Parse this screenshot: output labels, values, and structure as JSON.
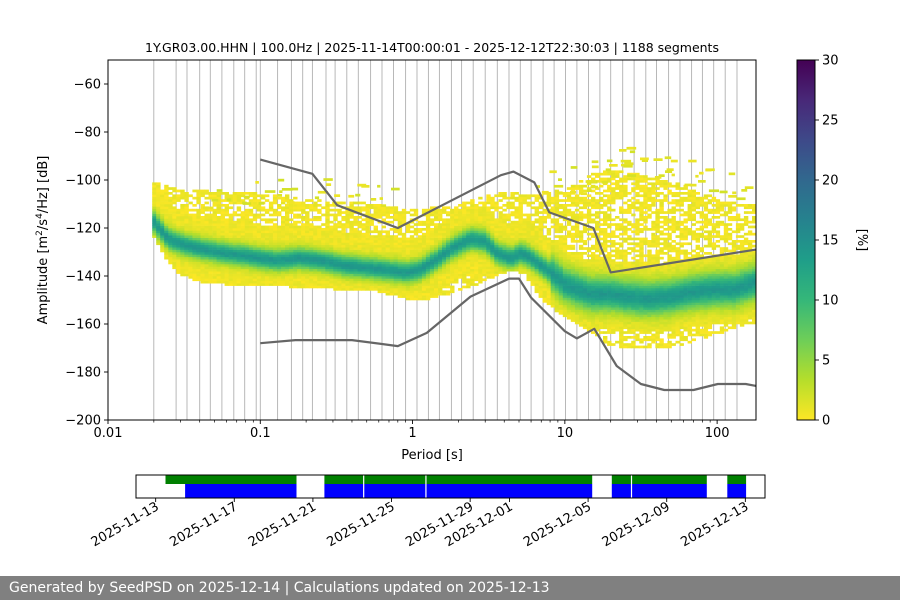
{
  "chart_data": [
    {
      "type": "heatmap",
      "title": "1Y.GR03.00.HHN | 100.0Hz | 2025-11-14T00:00:01 - 2025-12-12T22:30:03 | 1188 segments",
      "xlabel": "Period [s]",
      "ylabel_parts": [
        "Amplitude [m",
        "2",
        "/s",
        "4",
        "/Hz] [dB]"
      ],
      "x_scale": "log",
      "xlim": [
        0.01,
        180
      ],
      "ylim": [
        -200,
        -50
      ],
      "x_ticks": [
        0.01,
        0.1,
        1,
        10,
        100
      ],
      "x_tick_labels": [
        "0.01",
        "0.1",
        "1",
        "10",
        "100"
      ],
      "y_ticks": [
        -200,
        -180,
        -160,
        -140,
        -120,
        -100,
        -80,
        -60
      ],
      "y_tick_labels": [
        "−200",
        "−180",
        "−160",
        "−140",
        "−120",
        "−100",
        "−80",
        "−60"
      ],
      "grid": "vertical lines at PSD period bins",
      "grid_periods": [
        0.02,
        0.028,
        0.033,
        0.04,
        0.047,
        0.056,
        0.067,
        0.079,
        0.094,
        0.1,
        0.13,
        0.16,
        0.19,
        0.22,
        0.27,
        0.31,
        0.37,
        0.44,
        0.53,
        0.63,
        0.75,
        0.9,
        1.07,
        1.27,
        1.5,
        1.8,
        2.1,
        2.5,
        3.0,
        3.6,
        4.3,
        5.1,
        6.0,
        7.2,
        8.5,
        10.1,
        12,
        14.3,
        17,
        20,
        24,
        28.5,
        34,
        40,
        48,
        57,
        68,
        80,
        95,
        113,
        135
      ],
      "colorbar": {
        "label": "[%]",
        "range": [
          0,
          30
        ],
        "ticks": [
          0,
          5,
          10,
          15,
          20,
          25,
          30
        ],
        "tick_labels": [
          "0",
          "5",
          "10",
          "15",
          "20",
          "25",
          "30"
        ],
        "colors": [
          "#fde725",
          "#b5de2b",
          "#6ece58",
          "#35b779",
          "#1f9e89",
          "#26828e",
          "#31688e",
          "#3e4989",
          "#482878",
          "#440154"
        ]
      },
      "noise_models": {
        "color": "#666666",
        "high": {
          "x": [
            0.1,
            0.22,
            0.32,
            0.8,
            3.8,
            4.6,
            6.3,
            7.9,
            15.4,
            20,
            180
          ],
          "y": [
            -91.5,
            -97.4,
            -110.5,
            -120,
            -98,
            -96.5,
            -101,
            -113.5,
            -120,
            -138.5,
            -129
          ]
        },
        "low": {
          "x": [
            0.1,
            0.17,
            0.4,
            0.8,
            1.24,
            2.4,
            4.3,
            5.0,
            6.0,
            10,
            12,
            15.6,
            21.9,
            31.6,
            45,
            70,
            101,
            154,
            180
          ],
          "y": [
            -168,
            -166.7,
            -166.7,
            -169.2,
            -163.7,
            -148.6,
            -141.1,
            -141.1,
            -149,
            -163,
            -166,
            -162,
            -177.5,
            -185,
            -187.5,
            -187.5,
            -185,
            -185,
            -185.8
          ]
        }
      },
      "density": {
        "mode_x": [
          0.02,
          0.025,
          0.03,
          0.04,
          0.06,
          0.08,
          0.1,
          0.13,
          0.18,
          0.25,
          0.35,
          0.5,
          0.7,
          0.9,
          1.1,
          1.4,
          1.8,
          2.4,
          3.0,
          3.6,
          4.4,
          5.2,
          6.0,
          7.0,
          8.5,
          10,
          12,
          15,
          20,
          25,
          35,
          50,
          70,
          100,
          130,
          180
        ],
        "mode_y": [
          -118,
          -125,
          -127,
          -129,
          -131,
          -132,
          -133,
          -134,
          -133,
          -134,
          -136,
          -137,
          -138,
          -139,
          -138,
          -134,
          -129,
          -125,
          -126,
          -131,
          -133,
          -131,
          -133,
          -136,
          -140,
          -144,
          -146,
          -148,
          -148,
          -149,
          -150,
          -149,
          -147,
          -146,
          -146,
          -143
        ],
        "outline_x": [
          0.0195,
          0.025,
          0.03,
          0.04,
          0.06,
          0.08,
          0.1,
          0.15,
          0.2,
          0.3,
          0.5,
          0.8,
          1.0,
          1.3,
          1.8,
          2.5,
          3.6,
          4.5,
          5.5,
          7,
          10,
          15,
          20,
          30,
          50,
          70,
          100,
          130,
          180
        ],
        "outline_top": [
          -101,
          -103,
          -104,
          -105,
          -105,
          -106,
          -106,
          -107,
          -108,
          -109,
          -110,
          -112,
          -113,
          -112,
          -112,
          -108,
          -106,
          -105,
          -107,
          -106,
          -104,
          -98,
          -96,
          -98,
          -101,
          -104,
          -108,
          -110,
          -111
        ],
        "outline_bottom": [
          -123,
          -135,
          -140,
          -143,
          -144,
          -144,
          -144,
          -145,
          -145,
          -146,
          -146,
          -149,
          -151,
          -150,
          -148,
          -145,
          -140,
          -138,
          -140,
          -150,
          -158,
          -164,
          -170,
          -171,
          -170,
          -168,
          -165,
          -162,
          -160
        ],
        "upper_speckle_x": [
          0.05,
          0.09,
          0.15,
          0.25,
          0.4,
          0.6,
          8,
          12,
          18,
          22,
          28,
          40,
          60,
          90,
          140
        ],
        "upper_speckle_y": [
          -101,
          -99,
          -100,
          -100,
          -100,
          -101,
          -97,
          -95,
          -92,
          -88,
          -87,
          -89,
          -91,
          -94,
          -97
        ]
      }
    },
    {
      "type": "timeline",
      "x_range_dates": [
        "2025-11-12",
        "2025-12-14"
      ],
      "x_tick_labels": [
        "2025-11-13",
        "2025-11-17",
        "2025-11-21",
        "2025-11-25",
        "2025-11-29",
        "2025-12-01",
        "2025-12-05",
        "2025-12-09",
        "2025-12-13"
      ],
      "x_tick_dates": [
        "2025-11-13",
        "2025-11-17",
        "2025-11-21",
        "2025-11-25",
        "2025-11-29",
        "2025-12-01",
        "2025-12-05",
        "2025-12-09",
        "2025-12-13"
      ],
      "bars": [
        {
          "color": "#008000",
          "row": "top",
          "start": "2025-11-13T12:00",
          "end": "2025-11-20T04:00"
        },
        {
          "color": "#008000",
          "row": "top",
          "start": "2025-11-21T14:00",
          "end": "2025-12-05T05:00"
        },
        {
          "color": "#008000",
          "row": "top",
          "start": "2025-12-06T05:00",
          "end": "2025-12-11T01:00"
        },
        {
          "color": "#008000",
          "row": "top",
          "start": "2025-12-12T02:00",
          "end": "2025-12-13T01:00"
        },
        {
          "color": "#0000ff",
          "row": "bottom",
          "start": "2025-11-14T12:00",
          "end": "2025-11-20T04:00"
        },
        {
          "color": "#0000ff",
          "row": "bottom",
          "start": "2025-11-21T14:00",
          "end": "2025-12-05T05:00"
        },
        {
          "color": "#0000ff",
          "row": "bottom",
          "start": "2025-12-06T05:00",
          "end": "2025-12-11T01:00"
        },
        {
          "color": "#0000ff",
          "row": "bottom",
          "start": "2025-12-12T02:00",
          "end": "2025-12-13T01:00"
        }
      ],
      "gap_dates": [
        "2025-11-23T14:00",
        "2025-11-26T18:00",
        "2025-12-07T05:00"
      ]
    }
  ],
  "footer": {
    "text": "Generated by SeedPSD on 2025-12-14 | Calculations updated on 2025-12-13"
  }
}
